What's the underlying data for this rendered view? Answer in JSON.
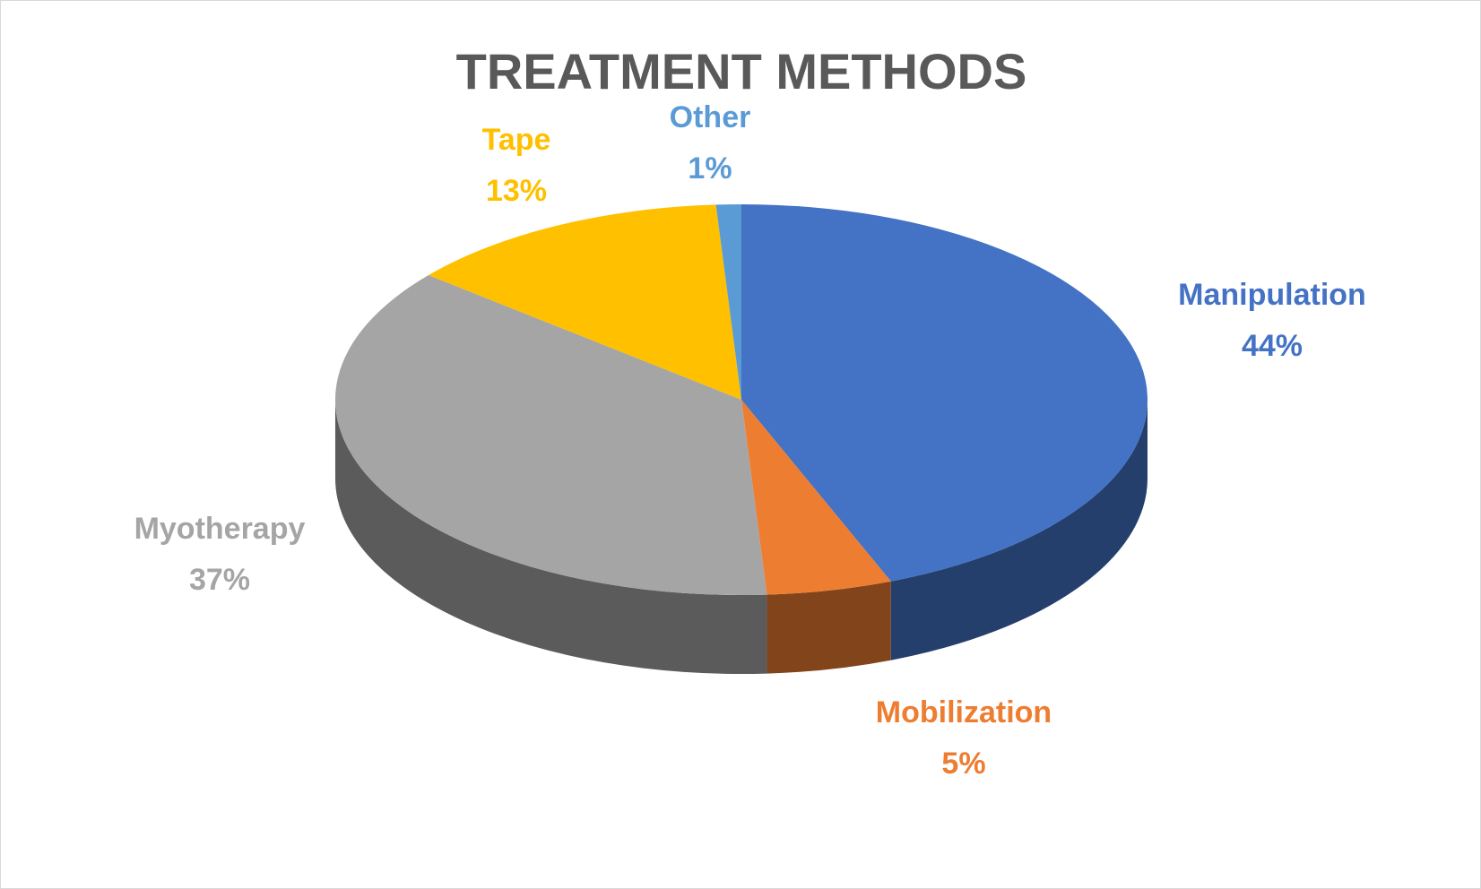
{
  "chart_data": {
    "type": "pie",
    "title": "TREATMENT METHODS",
    "categories": [
      "Manipulation",
      "Mobilization",
      "Myotherapy",
      "Tape",
      "Other"
    ],
    "values": [
      44,
      5,
      37,
      13,
      1
    ],
    "value_labels": [
      "44%",
      "5%",
      "37%",
      "13%",
      "1%"
    ],
    "colors": [
      "#4472c4",
      "#ed7d31",
      "#a5a5a5",
      "#ffc000",
      "#5b9bd5"
    ]
  }
}
